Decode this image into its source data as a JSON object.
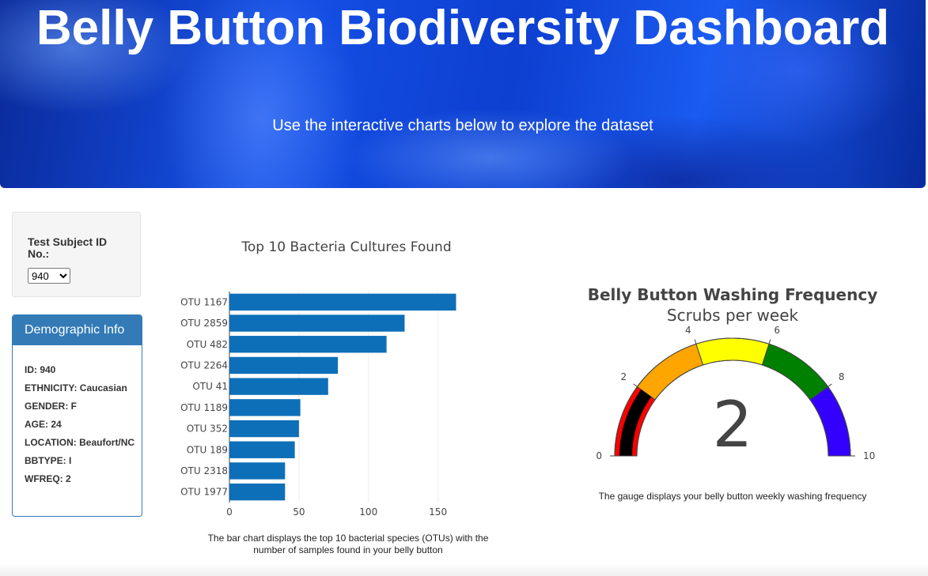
{
  "header": {
    "title": "Belly Button Biodiversity Dashboard",
    "subtitle": "Use the interactive charts below to explore the dataset"
  },
  "selector": {
    "label": "Test Subject ID No.:",
    "selected": "940"
  },
  "demographics": {
    "heading": "Demographic Info",
    "rows": [
      "ID: 940",
      "ETHNICITY: Caucasian",
      "GENDER: F",
      "AGE: 24",
      "LOCATION: Beaufort/NC",
      "BBTYPE: I",
      "WFREQ: 2"
    ]
  },
  "captions": {
    "bar": "The bar chart displays the top 10 bacterial species (OTUs) with the number of samples found in your belly button",
    "gauge": "The gauge displays your belly button weekly washing frequency"
  },
  "colors": {
    "bar": "#0d6fb8",
    "panel_primary": "#337ab7",
    "gauge_segments": [
      "#ff0000",
      "#ffa500",
      "#ffff00",
      "#008000",
      "#3300ff"
    ],
    "gauge_bar": "#000000"
  },
  "chart_data": [
    {
      "type": "bar",
      "orientation": "horizontal",
      "title": "Top 10 Bacteria Cultures Found",
      "categories": [
        "OTU 1167",
        "OTU 2859",
        "OTU 482",
        "OTU 2264",
        "OTU 41",
        "OTU 1189",
        "OTU 352",
        "OTU 189",
        "OTU 2318",
        "OTU 1977"
      ],
      "values": [
        163,
        126,
        113,
        78,
        71,
        51,
        50,
        47,
        40,
        40
      ],
      "xlim": [
        0,
        165
      ],
      "xticks": [
        0,
        50,
        100,
        150
      ],
      "grid": true
    },
    {
      "type": "gauge",
      "title": "Belly Button Washing Frequency",
      "subtitle": "Scrubs per week",
      "value": 2,
      "range": [
        0,
        10
      ],
      "ticks": [
        0,
        2,
        4,
        6,
        8,
        10
      ],
      "segments": [
        {
          "range": [
            0,
            2
          ],
          "color": "#ff0000"
        },
        {
          "range": [
            2,
            4
          ],
          "color": "#ffa500"
        },
        {
          "range": [
            4,
            6
          ],
          "color": "#ffff00"
        },
        {
          "range": [
            6,
            8
          ],
          "color": "#008000"
        },
        {
          "range": [
            8,
            10
          ],
          "color": "#3300ff"
        }
      ]
    }
  ]
}
